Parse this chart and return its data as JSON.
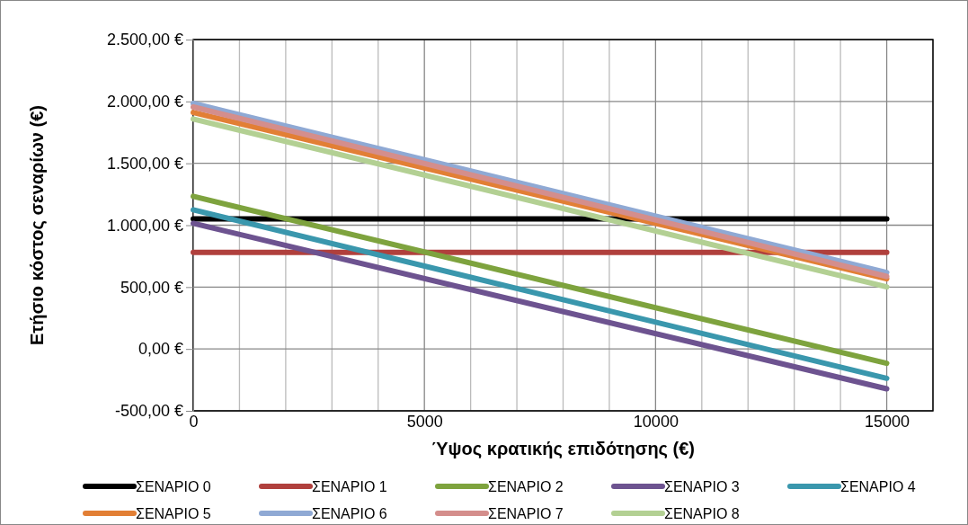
{
  "chart_data": {
    "type": "line",
    "xlabel": "Ύψος κρατικής επιδότησης (€)",
    "ylabel": "Ετήσιο κόστος σεναρίων (€)",
    "x": [
      0,
      15000
    ],
    "series": [
      {
        "name": "ΣΕΝΑΡΙΟ 0",
        "color": "#000000",
        "values": [
          1051,
          1051
        ]
      },
      {
        "name": "ΣΕΝΑΡΙΟ 1",
        "color": "#b0403d",
        "values": [
          780,
          780
        ]
      },
      {
        "name": "ΣΕΝΑΡΙΟ 2",
        "color": "#7ea33e",
        "values": [
          1233,
          -116
        ]
      },
      {
        "name": "ΣΕΝΑΡΙΟ 3",
        "color": "#6d5390",
        "values": [
          1015,
          -322
        ]
      },
      {
        "name": "ΣΕΝΑΡΙΟ 4",
        "color": "#3a97ad",
        "values": [
          1124,
          -237
        ]
      },
      {
        "name": "ΣΕΝΑΡΙΟ 5",
        "color": "#e27f35",
        "values": [
          1911,
          567
        ]
      },
      {
        "name": "ΣΕΝΑΡΙΟ 6",
        "color": "#8fa9d4",
        "values": [
          1984,
          618
        ]
      },
      {
        "name": "ΣΕΝΑΡΙΟ 7",
        "color": "#d48e8c",
        "values": [
          1955,
          586
        ]
      },
      {
        "name": "ΣΕΝΑΡΙΟ 8",
        "color": "#b3d093",
        "values": [
          1858,
          501
        ]
      }
    ],
    "xlim": [
      0,
      16000
    ],
    "xticks": [
      0,
      {
        "value": 1000,
        "label": null
      },
      {
        "value": 2000,
        "label": null
      },
      {
        "value": 3000,
        "label": null
      },
      {
        "value": 4000,
        "label": null
      },
      5000,
      {
        "value": 6000,
        "label": null
      },
      {
        "value": 7000,
        "label": null
      },
      {
        "value": 8000,
        "label": null
      },
      {
        "value": 9000,
        "label": null
      },
      10000,
      {
        "value": 11000,
        "label": null
      },
      {
        "value": 12000,
        "label": null
      },
      {
        "value": 13000,
        "label": null
      },
      {
        "value": 14000,
        "label": null
      },
      15000,
      {
        "value": 16000,
        "label": null
      }
    ],
    "ylim": [
      -500,
      2500
    ],
    "yticks": [
      {
        "value": -500,
        "label": "-500,00 €"
      },
      {
        "value": 0,
        "label": "0,00 €"
      },
      {
        "value": 500,
        "label": "500,00 €"
      },
      {
        "value": 1000,
        "label": "1.000,00 €"
      },
      {
        "value": 1500,
        "label": "1.500,00 €"
      },
      {
        "value": 2000,
        "label": "2.000,00 €"
      },
      {
        "value": 2500,
        "label": "2.500,00 €"
      }
    ],
    "grid": true,
    "legend": "bottom",
    "marker": "none",
    "line_style": "solid"
  }
}
